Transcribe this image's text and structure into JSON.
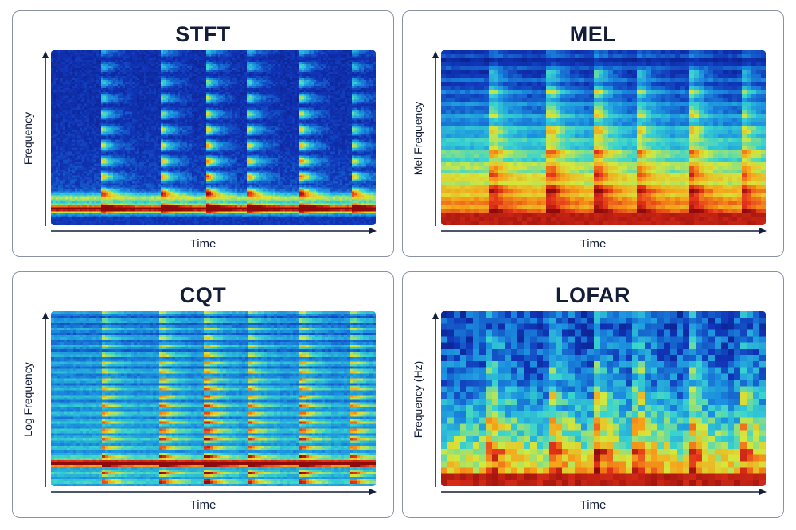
{
  "panels": [
    {
      "title": "STFT",
      "xlabel": "Time",
      "ylabel": "Frequency",
      "method": "stft"
    },
    {
      "title": "MEL",
      "xlabel": "Time",
      "ylabel": "Mel Frequency",
      "method": "mel"
    },
    {
      "title": "CQT",
      "xlabel": "Time",
      "ylabel": "Log Frequency",
      "method": "cqt"
    },
    {
      "title": "LOFAR",
      "xlabel": "Time",
      "ylabel": "Frequency (Hz)",
      "method": "lofar"
    }
  ],
  "colormap": [
    "#0a1670",
    "#1034b8",
    "#1b8fe0",
    "#38d4d0",
    "#d4e83c",
    "#f6a21a",
    "#e4321a",
    "#8e0a0a"
  ]
}
